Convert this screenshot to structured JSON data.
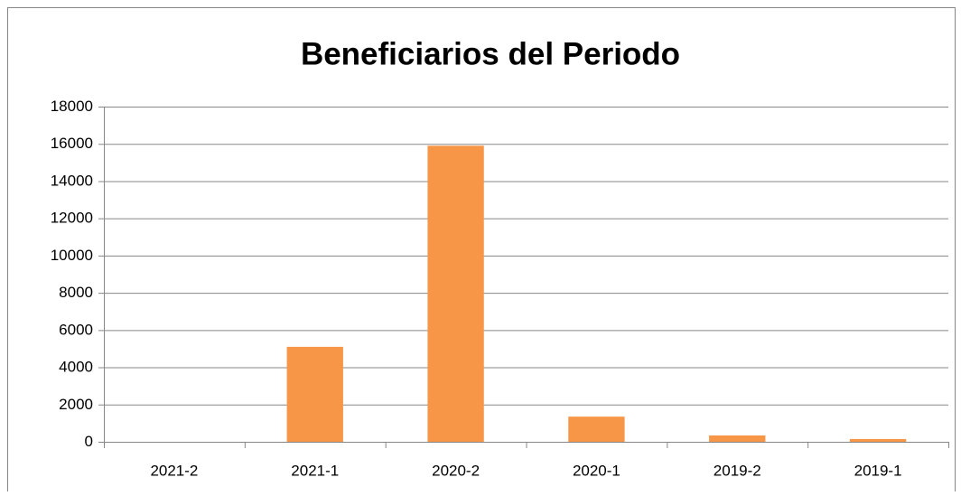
{
  "chart_data": {
    "type": "bar",
    "title": "Beneficiarios del Periodo",
    "categories": [
      "2021-2",
      "2021-1",
      "2020-2",
      "2020-1",
      "2019-2",
      "2019-1"
    ],
    "values": [
      0,
      5100,
      15900,
      1350,
      340,
      150
    ],
    "color": "#f79646",
    "ylim": [
      0,
      18000
    ],
    "yticks": [
      0,
      2000,
      4000,
      6000,
      8000,
      10000,
      12000,
      14000,
      16000,
      18000
    ],
    "grid": true
  }
}
